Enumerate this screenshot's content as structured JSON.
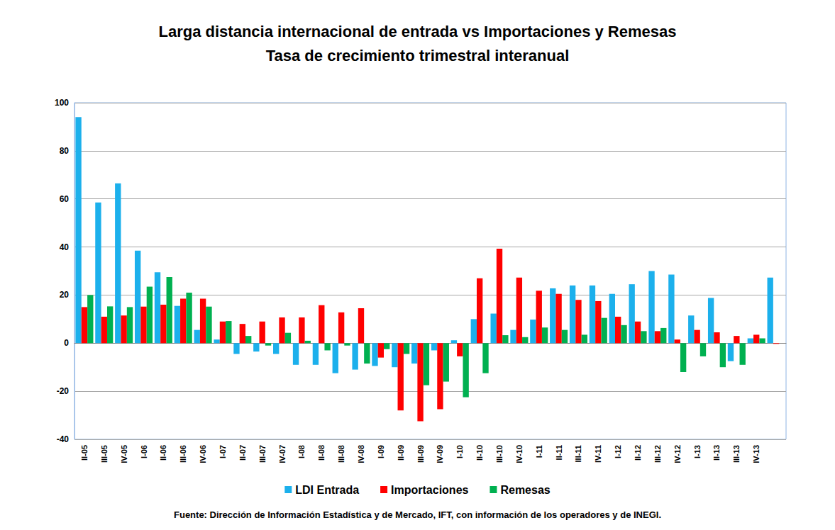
{
  "chart_data": {
    "type": "bar",
    "title": "Larga distancia internacional de entrada vs Importaciones y Remesas",
    "subtitle": "Tasa de crecimiento trimestral interanual",
    "source": "Fuente: Dirección de Información Estadística y de Mercado, IFT, con información de los operadores y de INEGI.",
    "categories": [
      "II-05",
      "III-05",
      "IV-05",
      "I-06",
      "II-06",
      "III-06",
      "IV-06",
      "I-07",
      "II-07",
      "III-07",
      "IV-07",
      "I-08",
      "II-08",
      "III-08",
      "IV-08",
      "I-09",
      "II-09",
      "III-09",
      "IV-09",
      "I-10",
      "II-10",
      "III-10",
      "IV-10",
      "I-11",
      "II-11",
      "III-11",
      "IV-11",
      "I-12",
      "II-12",
      "III-12",
      "IV-12",
      "I-13",
      "II-13",
      "III-13",
      "IV-13",
      null
    ],
    "series": [
      {
        "name": "LDI Entrada",
        "color": "#1cb0ec",
        "values": [
          94,
          58.5,
          66.5,
          38.5,
          29.5,
          15.5,
          5.5,
          1.5,
          -4.5,
          -3.5,
          -4.5,
          -9,
          -9,
          -12.5,
          -11,
          -9.5,
          -10,
          -8.5,
          -3,
          1.2,
          10,
          12.3,
          5.5,
          9.8,
          22.8,
          24,
          24,
          20.5,
          24.5,
          30,
          28.5,
          11.5,
          18.8,
          -7.5,
          2,
          27.3
        ]
      },
      {
        "name": "Importaciones",
        "color": "#ff0000",
        "values": [
          15,
          11,
          11.5,
          15.2,
          16,
          18.5,
          18.5,
          9,
          8,
          9,
          10.7,
          10.7,
          15.8,
          12.8,
          14.5,
          -6,
          -28,
          -32.5,
          -27.5,
          -5.5,
          27,
          39.3,
          27.3,
          21.8,
          20.5,
          18,
          17.5,
          11,
          9,
          5,
          1.5,
          5.5,
          4.5,
          3,
          3.5,
          -0.3
        ]
      },
      {
        "name": "Remesas",
        "color": "#00b050",
        "values": [
          20,
          15.3,
          15,
          23.5,
          27.5,
          21,
          15.2,
          9.2,
          3,
          -1,
          4.3,
          1,
          -3,
          -1,
          -8.5,
          -2.5,
          -4.5,
          -17.5,
          -16,
          -22.5,
          -12.5,
          3.3,
          2.5,
          6.5,
          5.5,
          3.5,
          10.5,
          7.5,
          5,
          6.3,
          -12,
          -5.5,
          -10,
          -9,
          2,
          null
        ]
      }
    ],
    "ylim": [
      -40,
      100
    ],
    "yticks": [
      -40,
      -20,
      0,
      20,
      40,
      60,
      80,
      100
    ],
    "grid": true,
    "legend": "bottom"
  }
}
